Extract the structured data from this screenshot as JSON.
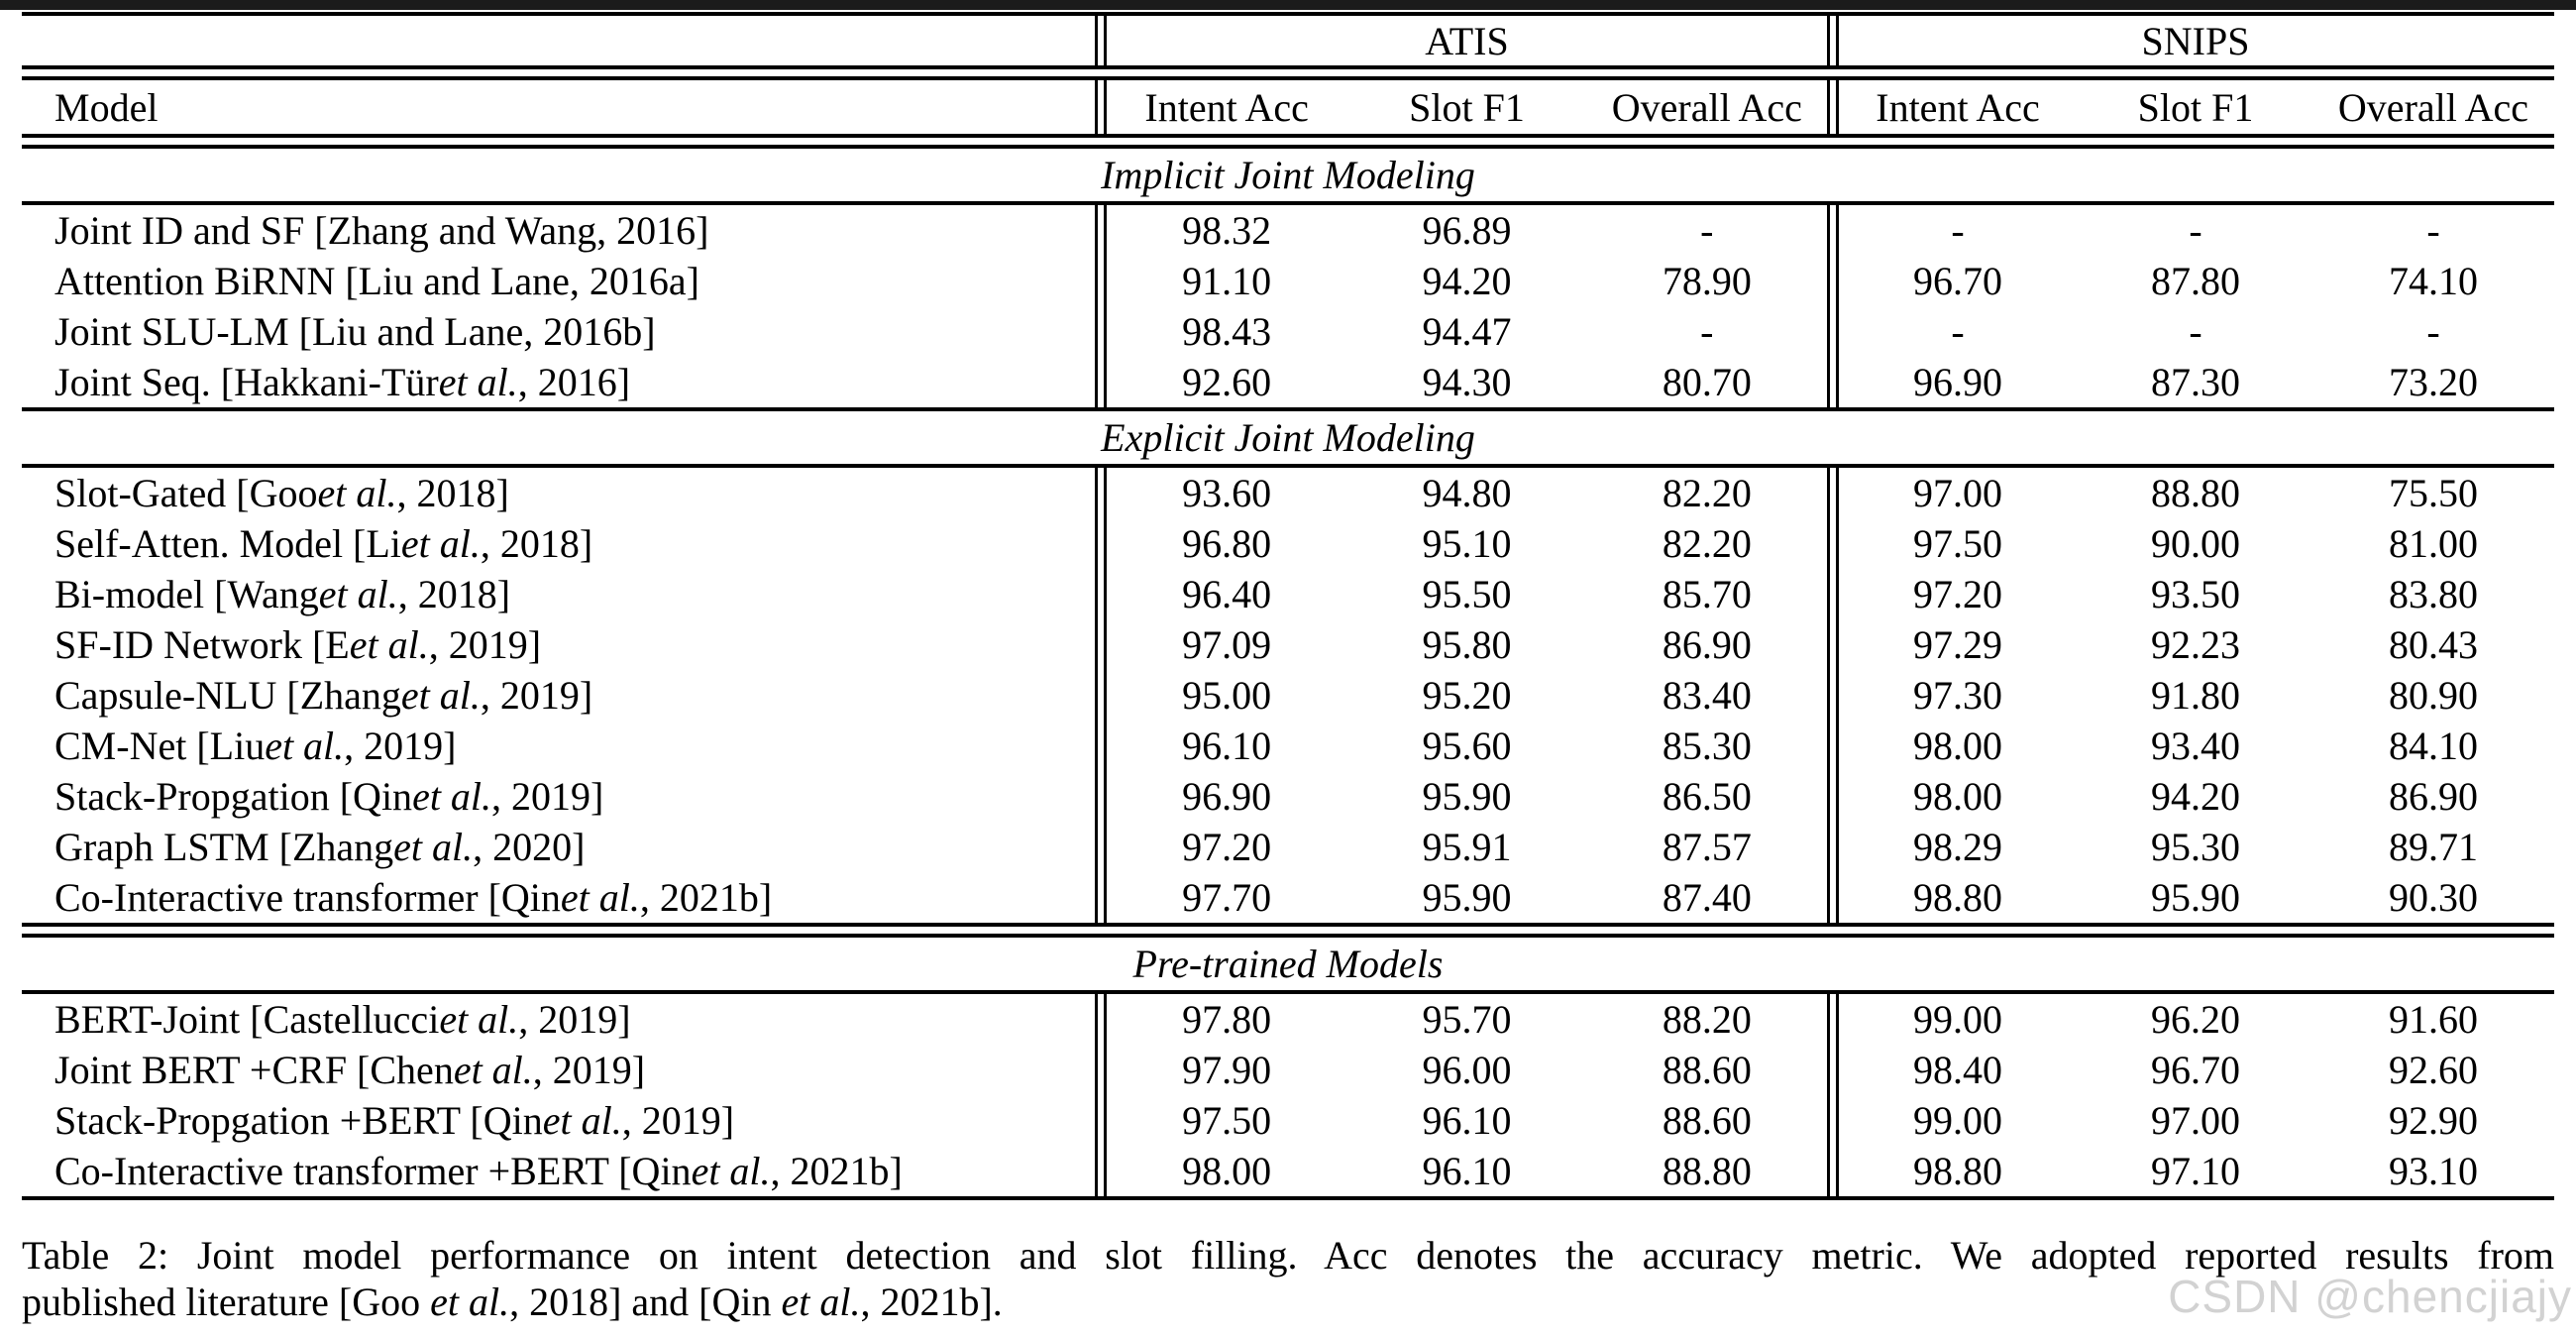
{
  "page": {
    "top_bar_color": "#1b1b1b",
    "background_color": "#ffffff",
    "text_color": "#000000"
  },
  "table": {
    "groups": [
      {
        "label": "ATIS"
      },
      {
        "label": "SNIPS"
      }
    ],
    "columns": [
      "Model",
      "Intent Acc",
      "Slot F1",
      "Overall Acc",
      "Intent Acc",
      "Slot F1",
      "Overall Acc"
    ],
    "sections": [
      {
        "title": "Implicit Joint Modeling",
        "rows": [
          {
            "model": "Joint ID and SF [Zhang and Wang, 2016]",
            "values": [
              "98.32",
              "96.89",
              "-",
              "-",
              "-",
              "-"
            ]
          },
          {
            "model": "Attention BiRNN [Liu and Lane, 2016a]",
            "values": [
              "91.10",
              "94.20",
              "78.90",
              "96.70",
              "87.80",
              "74.10"
            ]
          },
          {
            "model": "Joint SLU-LM [Liu and Lane, 2016b]",
            "values": [
              "98.43",
              "94.47",
              "-",
              "-",
              "-",
              "-"
            ]
          },
          {
            "model": "Joint Seq. [Hakkani-Tür et al., 2016]",
            "values": [
              "92.60",
              "94.30",
              "80.70",
              "96.90",
              "87.30",
              "73.20"
            ]
          }
        ]
      },
      {
        "title": "Explicit Joint Modeling",
        "rows": [
          {
            "model": "Slot-Gated [Goo et al., 2018]",
            "values": [
              "93.60",
              "94.80",
              "82.20",
              "97.00",
              "88.80",
              "75.50"
            ]
          },
          {
            "model": "Self-Atten. Model [Li et al., 2018]",
            "values": [
              "96.80",
              "95.10",
              "82.20",
              "97.50",
              "90.00",
              "81.00"
            ]
          },
          {
            "model": "Bi-model [Wang et al., 2018]",
            "values": [
              "96.40",
              "95.50",
              "85.70",
              "97.20",
              "93.50",
              "83.80"
            ]
          },
          {
            "model": "SF-ID Network [E et al., 2019]",
            "values": [
              "97.09",
              "95.80",
              "86.90",
              "97.29",
              "92.23",
              "80.43"
            ]
          },
          {
            "model": "Capsule-NLU [Zhang et al., 2019]",
            "values": [
              "95.00",
              "95.20",
              "83.40",
              "97.30",
              "91.80",
              "80.90"
            ]
          },
          {
            "model": "CM-Net [Liu et al., 2019]",
            "values": [
              "96.10",
              "95.60",
              "85.30",
              "98.00",
              "93.40",
              "84.10"
            ]
          },
          {
            "model": "Stack-Propgation [Qin et al., 2019]",
            "values": [
              "96.90",
              "95.90",
              "86.50",
              "98.00",
              "94.20",
              "86.90"
            ]
          },
          {
            "model": "Graph LSTM [Zhang et al., 2020]",
            "values": [
              "97.20",
              "95.91",
              "87.57",
              "98.29",
              "95.30",
              "89.71"
            ]
          },
          {
            "model": "Co-Interactive transformer [Qin et al., 2021b]",
            "values": [
              "97.70",
              "95.90",
              "87.40",
              "98.80",
              "95.90",
              "90.30"
            ]
          }
        ]
      },
      {
        "title": "Pre-trained Models",
        "rows": [
          {
            "model": "BERT-Joint [Castellucci et al., 2019]",
            "values": [
              "97.80",
              "95.70",
              "88.20",
              "99.00",
              "96.20",
              "91.60"
            ]
          },
          {
            "model": "Joint BERT +CRF [Chen et al., 2019]",
            "values": [
              "97.90",
              "96.00",
              "88.60",
              "98.40",
              "96.70",
              "92.60"
            ]
          },
          {
            "model": "Stack-Propgation +BERT [Qin et al., 2019]",
            "values": [
              "97.50",
              "96.10",
              "88.60",
              "99.00",
              "97.00",
              "92.90"
            ]
          },
          {
            "model": "Co-Interactive transformer +BERT [Qin et al., 2021b]",
            "values": [
              "98.00",
              "96.10",
              "88.80",
              "98.80",
              "97.10",
              "93.10"
            ]
          }
        ]
      }
    ]
  },
  "caption": {
    "line1": "Table 2: Joint model performance on intent detection and slot filling. Acc denotes the accuracy metric. We adopted reported results from",
    "line2": "published literature [Goo et al., 2018] and [Qin et al., 2021b]."
  },
  "watermark": {
    "text": "CSDN @chencjiajy",
    "color": "#d2d2d2"
  }
}
